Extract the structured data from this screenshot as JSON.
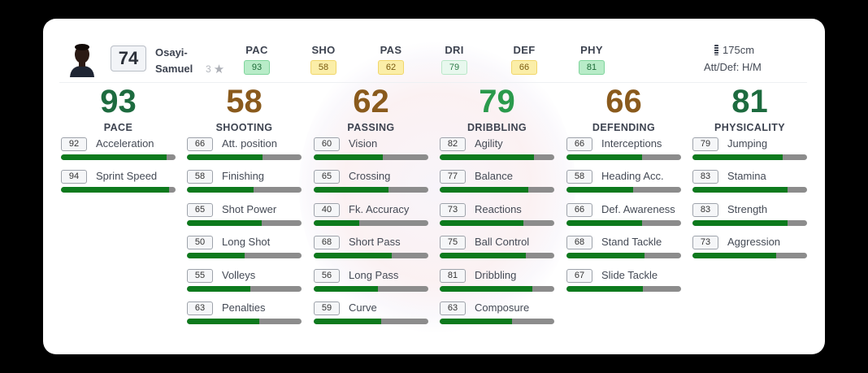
{
  "player": {
    "name_line1": "Osayi-",
    "name_line2": "Samuel",
    "overall": "74",
    "skill_label": "3",
    "skill_icon": "star-icon",
    "height": "175cm",
    "height_icon": "ruler-icon",
    "att_def": "Att/Def: H/M"
  },
  "summary": [
    {
      "label": "PAC",
      "value": "93",
      "tone": "green"
    },
    {
      "label": "SHO",
      "value": "58",
      "tone": "yellow"
    },
    {
      "label": "PAS",
      "value": "62",
      "tone": "yellow"
    },
    {
      "label": "DRI",
      "value": "79",
      "tone": "lightgreen"
    },
    {
      "label": "DEF",
      "value": "66",
      "tone": "yellow"
    },
    {
      "label": "PHY",
      "value": "81",
      "tone": "green"
    }
  ],
  "categories": [
    {
      "value": "93",
      "label": "PACE",
      "tone": "dgreen",
      "stats": [
        {
          "value": 92,
          "name": "Acceleration"
        },
        {
          "value": 94,
          "name": "Sprint Speed"
        }
      ]
    },
    {
      "value": "58",
      "label": "SHOOTING",
      "tone": "brown",
      "stats": [
        {
          "value": 66,
          "name": "Att. position"
        },
        {
          "value": 58,
          "name": "Finishing"
        },
        {
          "value": 65,
          "name": "Shot Power"
        },
        {
          "value": 50,
          "name": "Long Shot"
        },
        {
          "value": 55,
          "name": "Volleys"
        },
        {
          "value": 63,
          "name": "Penalties"
        }
      ]
    },
    {
      "value": "62",
      "label": "PASSING",
      "tone": "brown",
      "stats": [
        {
          "value": 60,
          "name": "Vision"
        },
        {
          "value": 65,
          "name": "Crossing"
        },
        {
          "value": 40,
          "name": "Fk. Accuracy"
        },
        {
          "value": 68,
          "name": "Short Pass"
        },
        {
          "value": 56,
          "name": "Long Pass"
        },
        {
          "value": 59,
          "name": "Curve"
        }
      ]
    },
    {
      "value": "79",
      "label": "DRIBBLING",
      "tone": "bgreen",
      "stats": [
        {
          "value": 82,
          "name": "Agility"
        },
        {
          "value": 77,
          "name": "Balance"
        },
        {
          "value": 73,
          "name": "Reactions"
        },
        {
          "value": 75,
          "name": "Ball Control"
        },
        {
          "value": 81,
          "name": "Dribbling"
        },
        {
          "value": 63,
          "name": "Composure"
        }
      ]
    },
    {
      "value": "66",
      "label": "DEFENDING",
      "tone": "brown",
      "stats": [
        {
          "value": 66,
          "name": "Interceptions"
        },
        {
          "value": 58,
          "name": "Heading Acc."
        },
        {
          "value": 66,
          "name": "Def. Awareness"
        },
        {
          "value": 68,
          "name": "Stand Tackle"
        },
        {
          "value": 67,
          "name": "Slide Tackle"
        }
      ]
    },
    {
      "value": "81",
      "label": "PHYSICALITY",
      "tone": "dgreen",
      "stats": [
        {
          "value": 79,
          "name": "Jumping"
        },
        {
          "value": 83,
          "name": "Stamina"
        },
        {
          "value": 83,
          "name": "Strength"
        },
        {
          "value": 73,
          "name": "Aggression"
        }
      ]
    }
  ],
  "colors": {
    "bar_fill": "#0d7a1d",
    "bar_track": "#8c8c8c",
    "rating_dark_green": "#1d6b3f",
    "rating_brown": "#8a5a1c",
    "rating_bright_green": "#2a9a4c"
  }
}
